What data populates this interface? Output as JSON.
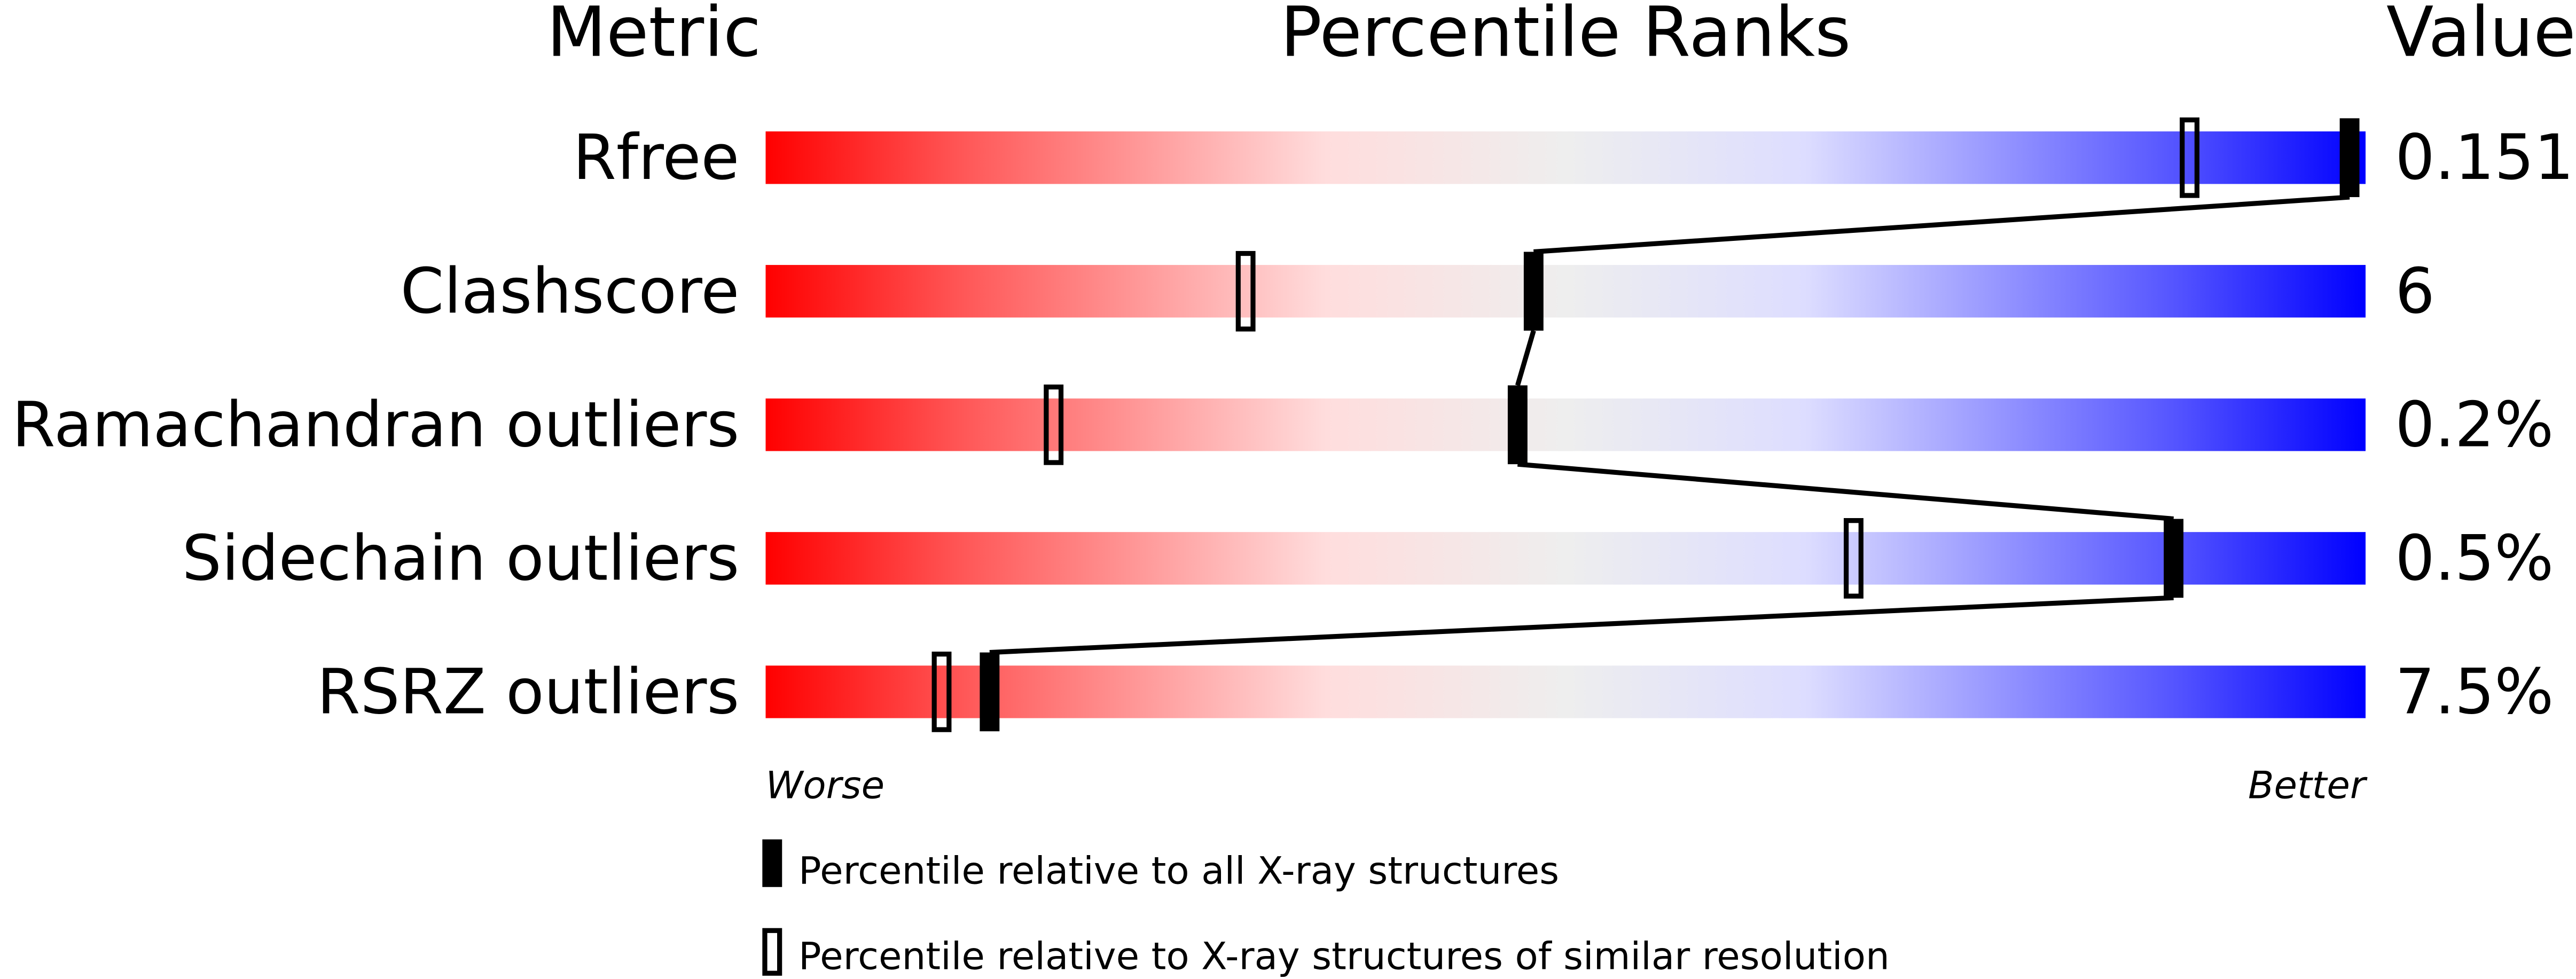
{
  "chart_data": {
    "type": "bar",
    "headers": {
      "metric": "Metric",
      "ranks": "Percentile Ranks",
      "value": "Value"
    },
    "xlim": [
      0,
      100
    ],
    "axis_labels": {
      "left": "Worse",
      "right": "Better"
    },
    "metrics": [
      {
        "name": "Rfree",
        "value": "0.151",
        "percentile_all": 99,
        "percentile_similar": 89
      },
      {
        "name": "Clashscore",
        "value": "6",
        "percentile_all": 48,
        "percentile_similar": 30
      },
      {
        "name": "Ramachandran outliers",
        "value": "0.2%",
        "percentile_all": 47,
        "percentile_similar": 18
      },
      {
        "name": "Sidechain outliers",
        "value": "0.5%",
        "percentile_all": 88,
        "percentile_similar": 68
      },
      {
        "name": "RSRZ outliers",
        "value": "7.5%",
        "percentile_all": 14,
        "percentile_similar": 11
      }
    ],
    "legend": {
      "all": "Percentile relative to all X-ray structures",
      "similar": "Percentile relative to X-ray structures of similar resolution"
    },
    "colors": {
      "worse": "#ff0000",
      "middle": "#eeeeee",
      "better": "#0000ff"
    }
  }
}
